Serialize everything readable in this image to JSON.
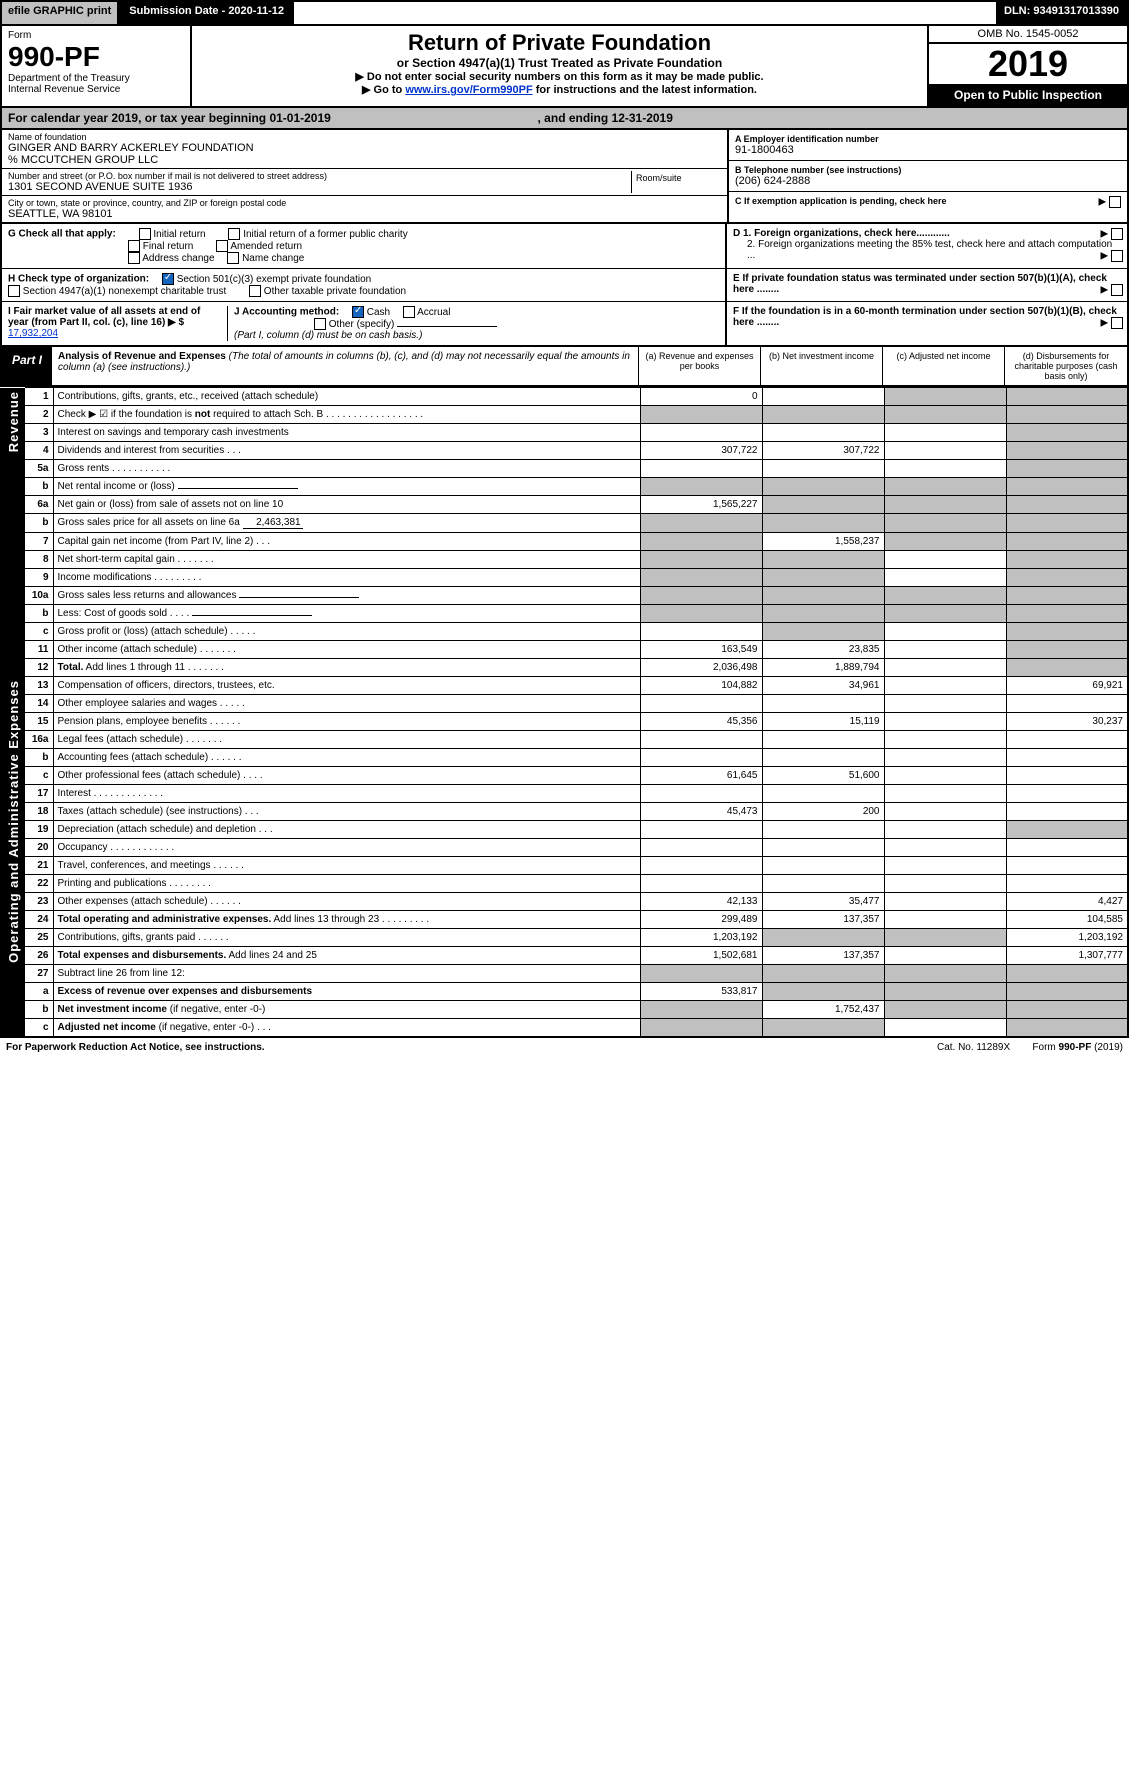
{
  "topbar": {
    "efile": "efile GRAPHIC print",
    "submission_label": "Submission Date - 2020-11-12",
    "dln": "DLN: 93491317013390"
  },
  "header": {
    "form_word": "Form",
    "form_no": "990-PF",
    "dept1": "Department of the Treasury",
    "dept2": "Internal Revenue Service",
    "title": "Return of Private Foundation",
    "subtitle": "or Section 4947(a)(1) Trust Treated as Private Foundation",
    "note1": "▶ Do not enter social security numbers on this form as it may be made public.",
    "note2_pre": "▶ Go to ",
    "note2_link": "www.irs.gov/Form990PF",
    "note2_post": " for instructions and the latest information.",
    "omb": "OMB No. 1545-0052",
    "year": "2019",
    "open": "Open to Public Inspection"
  },
  "calyear": {
    "pre": "For calendar year 2019, or tax year beginning 01-01-2019",
    "mid": ", and ending 12-31-2019"
  },
  "id": {
    "name_label": "Name of foundation",
    "name": "GINGER AND BARRY ACKERLEY FOUNDATION",
    "care_of": "% MCCUTCHEN GROUP LLC",
    "addr_label": "Number and street (or P.O. box number if mail is not delivered to street address)",
    "addr": "1301 SECOND AVENUE SUITE 1936",
    "room_label": "Room/suite",
    "city_label": "City or town, state or province, country, and ZIP or foreign postal code",
    "city": "SEATTLE, WA  98101",
    "ein_label": "A Employer identification number",
    "ein": "91-1800463",
    "phone_label": "B Telephone number (see instructions)",
    "phone": "(206) 624-2888",
    "pending_label": "C If exemption application is pending, check here"
  },
  "checks": {
    "g_label": "G Check all that apply:",
    "g_opts": [
      "Initial return",
      "Initial return of a former public charity",
      "Final return",
      "Amended return",
      "Address change",
      "Name change"
    ],
    "h_label": "H Check type of organization:",
    "h_opt1": "Section 501(c)(3) exempt private foundation",
    "h_opt2": "Section 4947(a)(1) nonexempt charitable trust",
    "h_opt3": "Other taxable private foundation",
    "i_label": "I Fair market value of all assets at end of year (from Part II, col. (c), line 16) ▶ $",
    "i_value": "17,932,204",
    "j_label": "J Accounting method:",
    "j_cash": "Cash",
    "j_accrual": "Accrual",
    "j_other": "Other (specify)",
    "j_note": "(Part I, column (d) must be on cash basis.)",
    "d1": "D 1. Foreign organizations, check here............",
    "d2": "2. Foreign organizations meeting the 85% test, check here and attach computation ...",
    "e": "E  If private foundation status was terminated under section 507(b)(1)(A), check here ........",
    "f": "F  If the foundation is in a 60-month termination under section 507(b)(1)(B), check here ........"
  },
  "part1": {
    "tag": "Part I",
    "title": "Analysis of Revenue and Expenses",
    "note": "(The total of amounts in columns (b), (c), and (d) may not necessarily equal the amounts in column (a) (see instructions).)",
    "col_a": "(a)   Revenue and expenses per books",
    "col_b": "(b)  Net investment income",
    "col_c": "(c)  Adjusted net income",
    "col_d": "(d)  Disbursements for charitable purposes (cash basis only)"
  },
  "side_rev": "Revenue",
  "side_exp": "Operating and Administrative Expenses",
  "rows": [
    {
      "n": "1",
      "d": "Contributions, gifts, grants, etc., received (attach schedule)",
      "a": "0",
      "b": "",
      "c": "s",
      "dd": "s"
    },
    {
      "n": "2",
      "d": "Check ▶ ☑ if the foundation is <b>not</b> required to attach Sch. B  . . . . . . . . . . . . . . . . . .",
      "a": "s",
      "b": "s",
      "c": "s",
      "dd": "s"
    },
    {
      "n": "3",
      "d": "Interest on savings and temporary cash investments",
      "a": "",
      "b": "",
      "c": "",
      "dd": "s"
    },
    {
      "n": "4",
      "d": "Dividends and interest from securities   .   .   .",
      "a": "307,722",
      "b": "307,722",
      "c": "",
      "dd": "s"
    },
    {
      "n": "5a",
      "d": "Gross rents    .   .   .   .   .   .   .   .   .   .   .",
      "a": "",
      "b": "",
      "c": "",
      "dd": "s"
    },
    {
      "n": "b",
      "d": "Net rental income or (loss)  ",
      "a": "s",
      "b": "s",
      "c": "s",
      "dd": "s",
      "inset": true
    },
    {
      "n": "6a",
      "d": "Net gain or (loss) from sale of assets not on line 10",
      "a": "1,565,227",
      "b": "s",
      "c": "s",
      "dd": "s"
    },
    {
      "n": "b",
      "d": "Gross sales price for all assets on line 6a ",
      "inset": true,
      "inval": "2,463,381",
      "a": "s",
      "b": "s",
      "c": "s",
      "dd": "s"
    },
    {
      "n": "7",
      "d": "Capital gain net income (from Part IV, line 2)   .   .   .",
      "a": "s",
      "b": "1,558,237",
      "c": "s",
      "dd": "s"
    },
    {
      "n": "8",
      "d": "Net short-term capital gain   .   .   .   .   .   .   .",
      "a": "s",
      "b": "s",
      "c": "",
      "dd": "s"
    },
    {
      "n": "9",
      "d": "Income modifications   .   .   .   .   .   .   .   .   .",
      "a": "s",
      "b": "s",
      "c": "",
      "dd": "s"
    },
    {
      "n": "10a",
      "d": "Gross sales less returns and allowances  ",
      "a": "s",
      "b": "s",
      "c": "s",
      "dd": "s",
      "inset": true
    },
    {
      "n": "b",
      "d": "Less: Cost of goods sold    .   .   .   .  ",
      "a": "s",
      "b": "s",
      "c": "s",
      "dd": "s",
      "inset": true
    },
    {
      "n": "c",
      "d": "Gross profit or (loss) (attach schedule)   .   .   .   .   .",
      "a": "",
      "b": "s",
      "c": "",
      "dd": "s"
    },
    {
      "n": "11",
      "d": "Other income (attach schedule)   .   .   .   .   .   .   .",
      "a": "163,549",
      "b": "23,835",
      "c": "",
      "dd": "s"
    },
    {
      "n": "12",
      "d": "<b>Total.</b> Add lines 1 through 11   .   .   .   .   .   .   .",
      "a": "2,036,498",
      "b": "1,889,794",
      "c": "",
      "dd": "s"
    },
    {
      "n": "13",
      "d": "Compensation of officers, directors, trustees, etc.",
      "a": "104,882",
      "b": "34,961",
      "c": "",
      "dd": "69,921"
    },
    {
      "n": "14",
      "d": "Other employee salaries and wages   .   .   .   .   .",
      "a": "",
      "b": "",
      "c": "",
      "dd": ""
    },
    {
      "n": "15",
      "d": "Pension plans, employee benefits   .   .   .   .   .   .",
      "a": "45,356",
      "b": "15,119",
      "c": "",
      "dd": "30,237"
    },
    {
      "n": "16a",
      "d": "Legal fees (attach schedule)   .   .   .   .   .   .   .",
      "a": "",
      "b": "",
      "c": "",
      "dd": ""
    },
    {
      "n": "b",
      "d": "Accounting fees (attach schedule)   .   .   .   .   .   .",
      "a": "",
      "b": "",
      "c": "",
      "dd": ""
    },
    {
      "n": "c",
      "d": "Other professional fees (attach schedule)   .   .   .   .",
      "a": "61,645",
      "b": "51,600",
      "c": "",
      "dd": ""
    },
    {
      "n": "17",
      "d": "Interest   .   .   .   .   .   .   .   .   .   .   .   .   .",
      "a": "",
      "b": "",
      "c": "",
      "dd": ""
    },
    {
      "n": "18",
      "d": "Taxes (attach schedule) (see instructions)   .   .   .",
      "a": "45,473",
      "b": "200",
      "c": "",
      "dd": ""
    },
    {
      "n": "19",
      "d": "Depreciation (attach schedule) and depletion   .   .   .",
      "a": "",
      "b": "",
      "c": "",
      "dd": "s"
    },
    {
      "n": "20",
      "d": "Occupancy   .   .   .   .   .   .   .   .   .   .   .   .",
      "a": "",
      "b": "",
      "c": "",
      "dd": ""
    },
    {
      "n": "21",
      "d": "Travel, conferences, and meetings   .   .   .   .   .   .",
      "a": "",
      "b": "",
      "c": "",
      "dd": ""
    },
    {
      "n": "22",
      "d": "Printing and publications   .   .   .   .   .   .   .   .",
      "a": "",
      "b": "",
      "c": "",
      "dd": ""
    },
    {
      "n": "23",
      "d": "Other expenses (attach schedule)   .   .   .   .   .   .",
      "a": "42,133",
      "b": "35,477",
      "c": "",
      "dd": "4,427"
    },
    {
      "n": "24",
      "d": "<b>Total operating and administrative expenses.</b> Add lines 13 through 23   .   .   .   .   .   .   .   .   .",
      "a": "299,489",
      "b": "137,357",
      "c": "",
      "dd": "104,585"
    },
    {
      "n": "25",
      "d": "Contributions, gifts, grants paid   .   .   .   .   .   .",
      "a": "1,203,192",
      "b": "s",
      "c": "s",
      "dd": "1,203,192"
    },
    {
      "n": "26",
      "d": "<b>Total expenses and disbursements.</b> Add lines 24 and 25",
      "a": "1,502,681",
      "b": "137,357",
      "c": "",
      "dd": "1,307,777"
    },
    {
      "n": "27",
      "d": "Subtract line 26 from line 12:",
      "a": "s",
      "b": "s",
      "c": "s",
      "dd": "s"
    },
    {
      "n": "a",
      "d": "<b>Excess of revenue over expenses and disbursements</b>",
      "a": "533,817",
      "b": "s",
      "c": "s",
      "dd": "s"
    },
    {
      "n": "b",
      "d": "<b>Net investment income</b> (if negative, enter -0-)",
      "a": "s",
      "b": "1,752,437",
      "c": "s",
      "dd": "s"
    },
    {
      "n": "c",
      "d": "<b>Adjusted net income</b> (if negative, enter -0-)   .   .   .",
      "a": "s",
      "b": "s",
      "c": "",
      "dd": "s"
    }
  ],
  "footer": {
    "left": "For Paperwork Reduction Act Notice, see instructions.",
    "mid": "Cat. No. 11289X",
    "right": "Form 990-PF (2019)"
  }
}
